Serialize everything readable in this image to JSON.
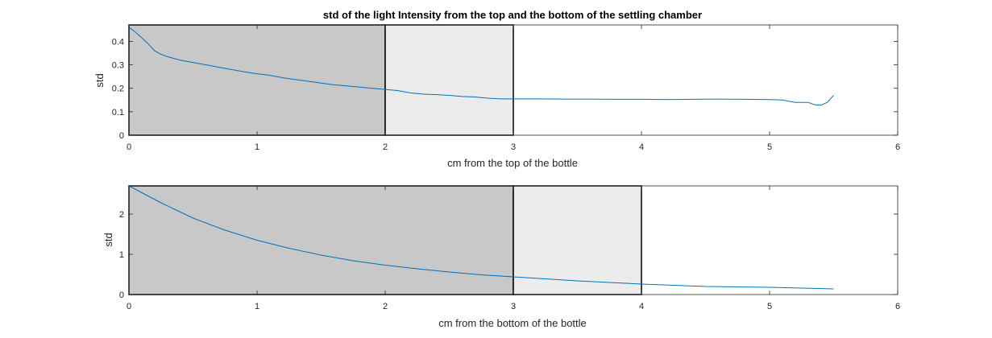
{
  "colors": {
    "line": "#0072BD",
    "dark_band": "#C8C8C8",
    "light_band": "#EBEBEB",
    "axes": "#262626",
    "band_border": "#000000"
  },
  "chart_data": [
    {
      "type": "line",
      "title": "std of the light Intensity from the top and the bottom of the settling chamber",
      "xlabel": "cm from the top of the bottle",
      "ylabel": "std",
      "xlim": [
        0,
        6
      ],
      "ylim": [
        0,
        0.47
      ],
      "xticks": [
        0,
        1,
        2,
        3,
        4,
        5,
        6
      ],
      "xtick_labels": [
        "0",
        "1",
        "2",
        "3",
        "4",
        "5",
        "6"
      ],
      "yticks": [
        0,
        0.1,
        0.2,
        0.3,
        0.4
      ],
      "ytick_labels": [
        "0",
        "0.1",
        "0.2",
        "0.3",
        "0.4"
      ],
      "bands": [
        {
          "x0": 0,
          "x1": 2,
          "shade": "dark"
        },
        {
          "x0": 2,
          "x1": 3,
          "shade": "light"
        }
      ],
      "series": [
        {
          "x": [
            0,
            0.05,
            0.1,
            0.15,
            0.2,
            0.25,
            0.3,
            0.4,
            0.5,
            0.6,
            0.7,
            0.8,
            0.9,
            1.0,
            1.1,
            1.2,
            1.3,
            1.4,
            1.5,
            1.6,
            1.7,
            1.8,
            1.9,
            2.0,
            2.1,
            2.2,
            2.3,
            2.4,
            2.5,
            2.6,
            2.7,
            2.8,
            2.9,
            3.0,
            3.2,
            3.4,
            3.6,
            3.8,
            4.0,
            4.2,
            4.4,
            4.6,
            4.8,
            5.0,
            5.1,
            5.2,
            5.3,
            5.35,
            5.4,
            5.45,
            5.5
          ],
          "values": [
            0.46,
            0.44,
            0.415,
            0.39,
            0.36,
            0.345,
            0.335,
            0.32,
            0.31,
            0.3,
            0.29,
            0.28,
            0.27,
            0.262,
            0.255,
            0.245,
            0.237,
            0.23,
            0.222,
            0.215,
            0.21,
            0.205,
            0.2,
            0.195,
            0.19,
            0.18,
            0.175,
            0.173,
            0.17,
            0.165,
            0.163,
            0.158,
            0.155,
            0.155,
            0.155,
            0.154,
            0.154,
            0.153,
            0.153,
            0.152,
            0.153,
            0.154,
            0.153,
            0.152,
            0.15,
            0.14,
            0.14,
            0.13,
            0.128,
            0.14,
            0.17
          ]
        }
      ]
    },
    {
      "type": "line",
      "title": "",
      "xlabel": "cm from the bottom of the bottle",
      "ylabel": "std",
      "xlim": [
        0,
        6
      ],
      "ylim": [
        0,
        2.7
      ],
      "xticks": [
        0,
        1,
        2,
        3,
        4,
        5,
        6
      ],
      "xtick_labels": [
        "0",
        "1",
        "2",
        "3",
        "4",
        "5",
        "6"
      ],
      "yticks": [
        0,
        1,
        2
      ],
      "ytick_labels": [
        "0",
        "1",
        "2"
      ],
      "bands": [
        {
          "x0": 0,
          "x1": 3,
          "shade": "dark"
        },
        {
          "x0": 3,
          "x1": 4,
          "shade": "light"
        }
      ],
      "series": [
        {
          "x": [
            0,
            0.25,
            0.5,
            0.75,
            1.0,
            1.25,
            1.5,
            1.75,
            2.0,
            2.25,
            2.5,
            2.75,
            3.0,
            3.25,
            3.5,
            3.75,
            4.0,
            4.25,
            4.5,
            4.75,
            5.0,
            5.25,
            5.5
          ],
          "values": [
            2.7,
            2.28,
            1.9,
            1.6,
            1.35,
            1.15,
            0.98,
            0.84,
            0.73,
            0.64,
            0.56,
            0.49,
            0.44,
            0.39,
            0.34,
            0.3,
            0.26,
            0.23,
            0.2,
            0.19,
            0.18,
            0.16,
            0.14
          ]
        }
      ]
    }
  ]
}
